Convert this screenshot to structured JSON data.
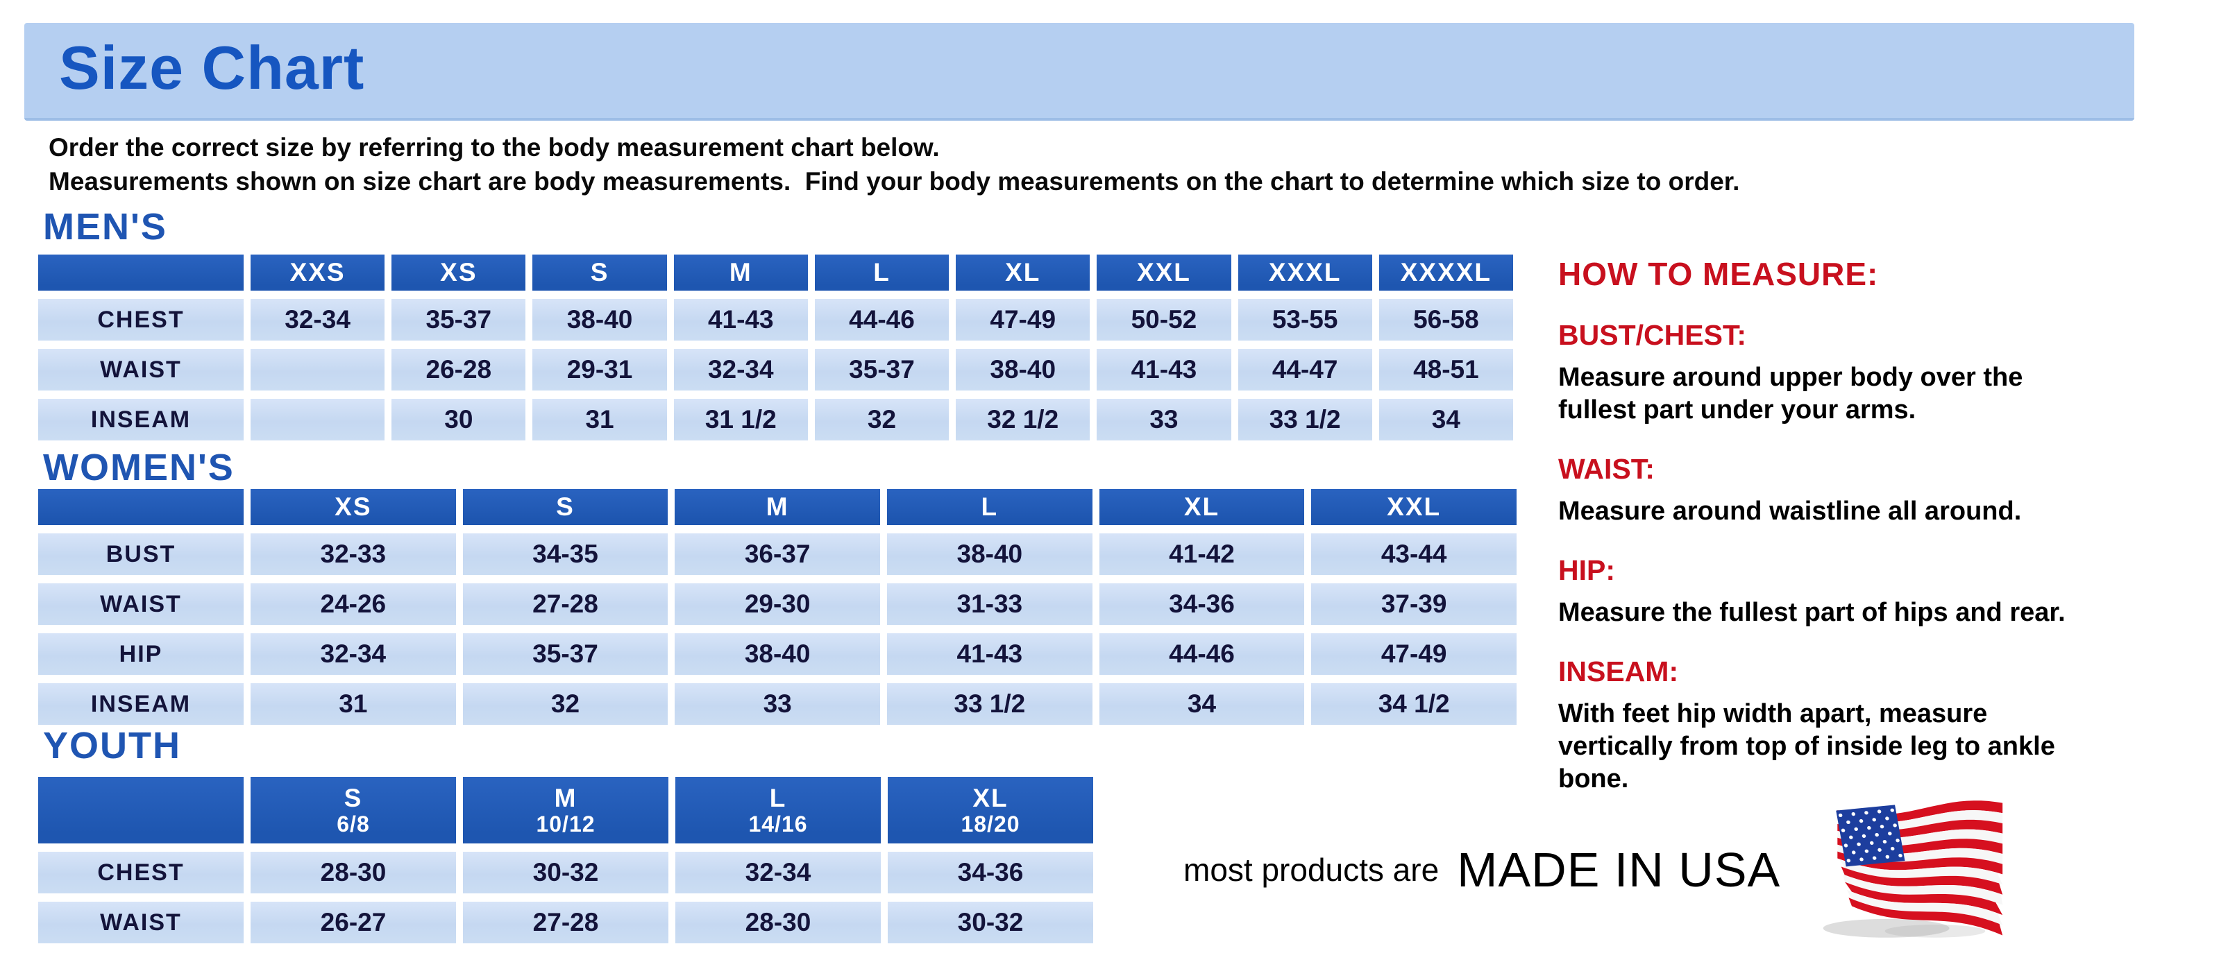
{
  "banner": {
    "title": "Size Chart"
  },
  "intro": {
    "line1": "Order the correct size by referring to the body measurement chart below.",
    "line2": "Measurements shown on size chart are body measurements.  Find your body measurements on the chart to determine which size to order."
  },
  "tables": {
    "mens": {
      "heading": "MEN'S",
      "columns": [
        "XXS",
        "XS",
        "S",
        "M",
        "L",
        "XL",
        "XXL",
        "XXXL",
        "XXXXL"
      ],
      "rows": [
        {
          "label": "CHEST",
          "values": [
            "32-34",
            "35-37",
            "38-40",
            "41-43",
            "44-46",
            "47-49",
            "50-52",
            "53-55",
            "56-58"
          ]
        },
        {
          "label": "WAIST",
          "values": [
            "",
            "26-28",
            "29-31",
            "32-34",
            "35-37",
            "38-40",
            "41-43",
            "44-47",
            "48-51"
          ]
        },
        {
          "label": "INSEAM",
          "values": [
            "",
            "30",
            "31",
            "31 1/2",
            "32",
            "32 1/2",
            "33",
            "33 1/2",
            "34"
          ]
        }
      ]
    },
    "womens": {
      "heading": "WOMEN'S",
      "columns": [
        "XS",
        "S",
        "M",
        "L",
        "XL",
        "XXL"
      ],
      "rows": [
        {
          "label": "BUST",
          "values": [
            "32-33",
            "34-35",
            "36-37",
            "38-40",
            "41-42",
            "43-44"
          ]
        },
        {
          "label": "WAIST",
          "values": [
            "24-26",
            "27-28",
            "29-30",
            "31-33",
            "34-36",
            "37-39"
          ]
        },
        {
          "label": "HIP",
          "values": [
            "32-34",
            "35-37",
            "38-40",
            "41-43",
            "44-46",
            "47-49"
          ]
        },
        {
          "label": "INSEAM",
          "values": [
            "31",
            "32",
            "33",
            "33 1/2",
            "34",
            "34 1/2"
          ]
        }
      ]
    },
    "youth": {
      "heading": "YOUTH",
      "columns": [
        {
          "size": "S",
          "range": "6/8"
        },
        {
          "size": "M",
          "range": "10/12"
        },
        {
          "size": "L",
          "range": "14/16"
        },
        {
          "size": "XL",
          "range": "18/20"
        }
      ],
      "rows": [
        {
          "label": "CHEST",
          "values": [
            "28-30",
            "30-32",
            "32-34",
            "34-36"
          ]
        },
        {
          "label": "WAIST",
          "values": [
            "26-27",
            "27-28",
            "28-30",
            "30-32"
          ]
        }
      ]
    }
  },
  "how_to_measure": {
    "heading": "HOW TO MEASURE:",
    "items": [
      {
        "label": "BUST/CHEST:",
        "text": "Measure around upper body over the fullest part under your arms."
      },
      {
        "label": "WAIST:",
        "text": "Measure around waistline all around."
      },
      {
        "label": "HIP:",
        "text": "Measure the fullest part of hips and rear."
      },
      {
        "label": "INSEAM:",
        "text": "With feet hip width apart, measure vertically from top of inside leg to ankle bone."
      }
    ]
  },
  "footer": {
    "prefix": "most products are",
    "emphasis": "MADE IN USA",
    "flag_icon": "usa-flag-icon"
  },
  "colors": {
    "banner_bg": "#b5cff1",
    "title_blue": "#1656c0",
    "heading_blue": "#1f55b2",
    "header_cell_bg": "#1e56b0",
    "cell_bg": "#cbddf3",
    "cell_text": "#13133a",
    "accent_red": "#c8101e",
    "flag_red": "#d6101f",
    "flag_blue": "#1d3e9e"
  }
}
